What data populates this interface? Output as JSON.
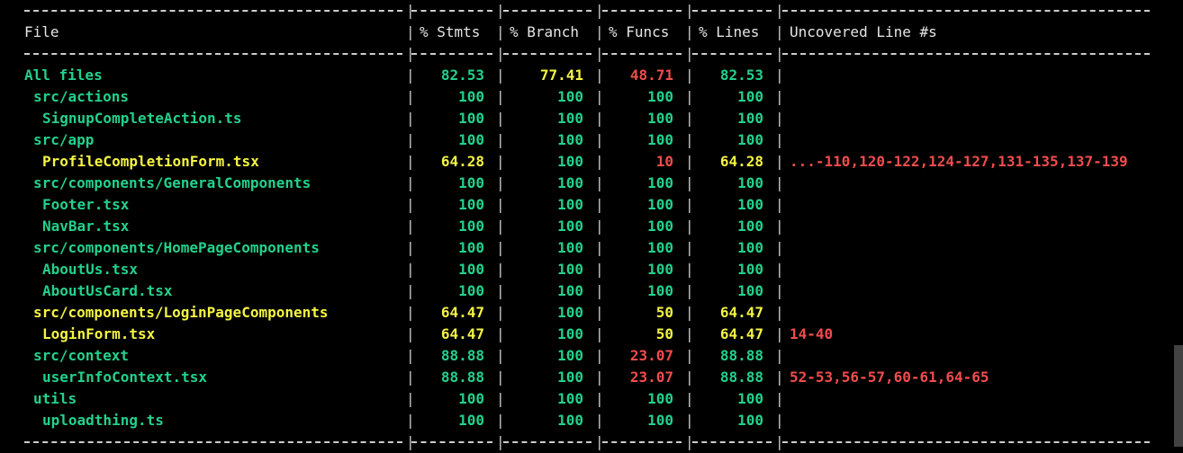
{
  "header": {
    "file": "File",
    "stmts": "% Stmts",
    "branch": "% Branch",
    "funcs": "% Funcs",
    "lines": "% Lines",
    "uncovered": "Uncovered Line #s"
  },
  "colors": {
    "high": "#23d18b",
    "medium": "#f5f543",
    "low": "#f14c4c",
    "background": "#000000",
    "text": "#cccccc"
  },
  "rows": [
    {
      "file": "All files",
      "indent": 0,
      "file_color": "green",
      "stmts": "82.53",
      "stmts_color": "green",
      "branch": "77.41",
      "branch_color": "yellow",
      "funcs": "48.71",
      "funcs_color": "red",
      "lines": "82.53",
      "lines_color": "green",
      "uncovered": ""
    },
    {
      "file": "src/actions",
      "indent": 1,
      "file_color": "green",
      "stmts": "100",
      "stmts_color": "green",
      "branch": "100",
      "branch_color": "green",
      "funcs": "100",
      "funcs_color": "green",
      "lines": "100",
      "lines_color": "green",
      "uncovered": ""
    },
    {
      "file": "SignupCompleteAction.ts",
      "indent": 2,
      "file_color": "green",
      "stmts": "100",
      "stmts_color": "green",
      "branch": "100",
      "branch_color": "green",
      "funcs": "100",
      "funcs_color": "green",
      "lines": "100",
      "lines_color": "green",
      "uncovered": ""
    },
    {
      "file": "src/app",
      "indent": 1,
      "file_color": "green",
      "stmts": "100",
      "stmts_color": "green",
      "branch": "100",
      "branch_color": "green",
      "funcs": "100",
      "funcs_color": "green",
      "lines": "100",
      "lines_color": "green",
      "uncovered": ""
    },
    {
      "file": "ProfileCompletionForm.tsx",
      "indent": 2,
      "file_color": "yellow",
      "stmts": "64.28",
      "stmts_color": "yellow",
      "branch": "100",
      "branch_color": "green",
      "funcs": "10",
      "funcs_color": "red",
      "lines": "64.28",
      "lines_color": "yellow",
      "uncovered": "...-110,120-122,124-127,131-135,137-139"
    },
    {
      "file": "src/components/GeneralComponents",
      "indent": 1,
      "file_color": "green",
      "stmts": "100",
      "stmts_color": "green",
      "branch": "100",
      "branch_color": "green",
      "funcs": "100",
      "funcs_color": "green",
      "lines": "100",
      "lines_color": "green",
      "uncovered": ""
    },
    {
      "file": "Footer.tsx",
      "indent": 2,
      "file_color": "green",
      "stmts": "100",
      "stmts_color": "green",
      "branch": "100",
      "branch_color": "green",
      "funcs": "100",
      "funcs_color": "green",
      "lines": "100",
      "lines_color": "green",
      "uncovered": ""
    },
    {
      "file": "NavBar.tsx",
      "indent": 2,
      "file_color": "green",
      "stmts": "100",
      "stmts_color": "green",
      "branch": "100",
      "branch_color": "green",
      "funcs": "100",
      "funcs_color": "green",
      "lines": "100",
      "lines_color": "green",
      "uncovered": ""
    },
    {
      "file": "src/components/HomePageComponents",
      "indent": 1,
      "file_color": "green",
      "stmts": "100",
      "stmts_color": "green",
      "branch": "100",
      "branch_color": "green",
      "funcs": "100",
      "funcs_color": "green",
      "lines": "100",
      "lines_color": "green",
      "uncovered": ""
    },
    {
      "file": "AboutUs.tsx",
      "indent": 2,
      "file_color": "green",
      "stmts": "100",
      "stmts_color": "green",
      "branch": "100",
      "branch_color": "green",
      "funcs": "100",
      "funcs_color": "green",
      "lines": "100",
      "lines_color": "green",
      "uncovered": ""
    },
    {
      "file": "AboutUsCard.tsx",
      "indent": 2,
      "file_color": "green",
      "stmts": "100",
      "stmts_color": "green",
      "branch": "100",
      "branch_color": "green",
      "funcs": "100",
      "funcs_color": "green",
      "lines": "100",
      "lines_color": "green",
      "uncovered": ""
    },
    {
      "file": "src/components/LoginPageComponents",
      "indent": 1,
      "file_color": "yellow",
      "stmts": "64.47",
      "stmts_color": "yellow",
      "branch": "100",
      "branch_color": "green",
      "funcs": "50",
      "funcs_color": "yellow",
      "lines": "64.47",
      "lines_color": "yellow",
      "uncovered": ""
    },
    {
      "file": "LoginForm.tsx",
      "indent": 2,
      "file_color": "yellow",
      "stmts": "64.47",
      "stmts_color": "yellow",
      "branch": "100",
      "branch_color": "green",
      "funcs": "50",
      "funcs_color": "yellow",
      "lines": "64.47",
      "lines_color": "yellow",
      "uncovered": "14-40"
    },
    {
      "file": "src/context",
      "indent": 1,
      "file_color": "green",
      "stmts": "88.88",
      "stmts_color": "green",
      "branch": "100",
      "branch_color": "green",
      "funcs": "23.07",
      "funcs_color": "red",
      "lines": "88.88",
      "lines_color": "green",
      "uncovered": ""
    },
    {
      "file": "userInfoContext.tsx",
      "indent": 2,
      "file_color": "green",
      "stmts": "88.88",
      "stmts_color": "green",
      "branch": "100",
      "branch_color": "green",
      "funcs": "23.07",
      "funcs_color": "red",
      "lines": "88.88",
      "lines_color": "green",
      "uncovered": "52-53,56-57,60-61,64-65"
    },
    {
      "file": "utils",
      "indent": 1,
      "file_color": "green",
      "stmts": "100",
      "stmts_color": "green",
      "branch": "100",
      "branch_color": "green",
      "funcs": "100",
      "funcs_color": "green",
      "lines": "100",
      "lines_color": "green",
      "uncovered": ""
    },
    {
      "file": "uploadthing.ts",
      "indent": 2,
      "file_color": "green",
      "stmts": "100",
      "stmts_color": "green",
      "branch": "100",
      "branch_color": "green",
      "funcs": "100",
      "funcs_color": "green",
      "lines": "100",
      "lines_color": "green",
      "uncovered": ""
    }
  ]
}
